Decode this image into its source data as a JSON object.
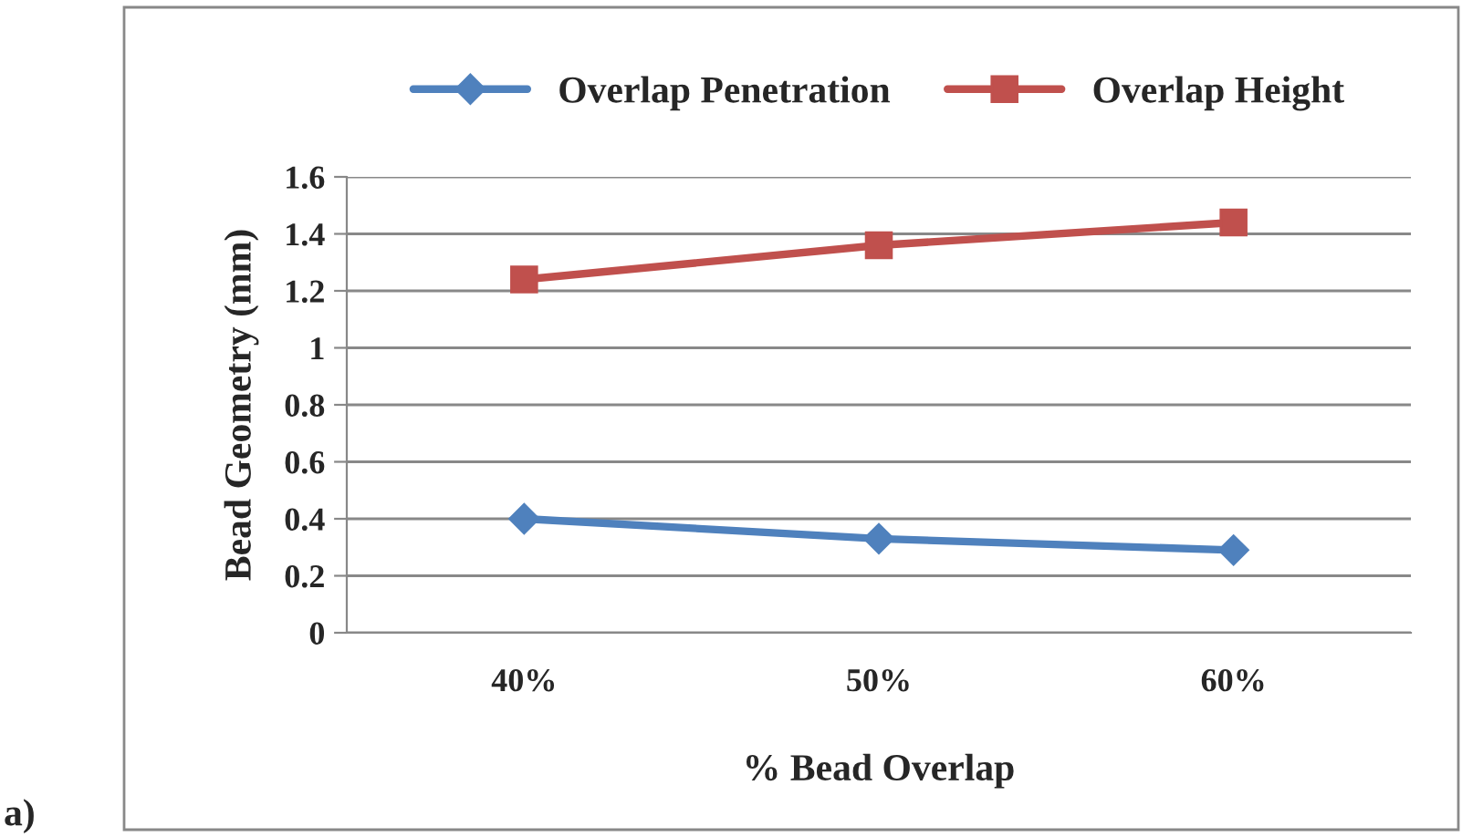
{
  "chart_data": {
    "type": "line",
    "xlabel": "% Bead Overlap",
    "ylabel": "Bead Geometry (mm)",
    "categories": [
      "40%",
      "50%",
      "60%"
    ],
    "series": [
      {
        "name": "Overlap Penetration",
        "color": "#4f81bd",
        "values": [
          0.4,
          0.33,
          0.29
        ],
        "marker": "diamond"
      },
      {
        "name": "Overlap Height",
        "color": "#c0504d",
        "values": [
          1.24,
          1.36,
          1.44
        ],
        "marker": "square"
      }
    ],
    "ylim": [
      0,
      1.6
    ],
    "yticks": [
      0,
      0.2,
      0.4,
      0.6,
      0.8,
      1,
      1.2,
      1.4,
      1.6
    ],
    "grid": "y",
    "legend": "top",
    "annotations": [
      "a)"
    ]
  }
}
